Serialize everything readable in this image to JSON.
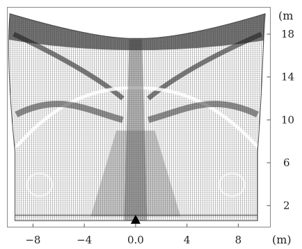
{
  "chart_data": {
    "type": "vector_field",
    "xunit": "(m)",
    "yunit": "(m",
    "xlim": [
      -10,
      10.5
    ],
    "ylim": [
      0,
      20.5
    ],
    "x_ticks": [
      {
        "value": -8,
        "label": "−8"
      },
      {
        "value": -4,
        "label": "−4"
      },
      {
        "value": 0,
        "label": "0.0"
      },
      {
        "value": 4,
        "label": "4"
      },
      {
        "value": 8,
        "label": "8"
      }
    ],
    "y_ticks": [
      {
        "value": 2,
        "label": "2"
      },
      {
        "value": 6,
        "label": "6"
      },
      {
        "value": 10,
        "label": "10"
      },
      {
        "value": 14,
        "label": "14"
      },
      {
        "value": 18,
        "label": "18"
      }
    ],
    "grid": false,
    "source_marker": {
      "x": 0,
      "y": 0.5
    }
  }
}
